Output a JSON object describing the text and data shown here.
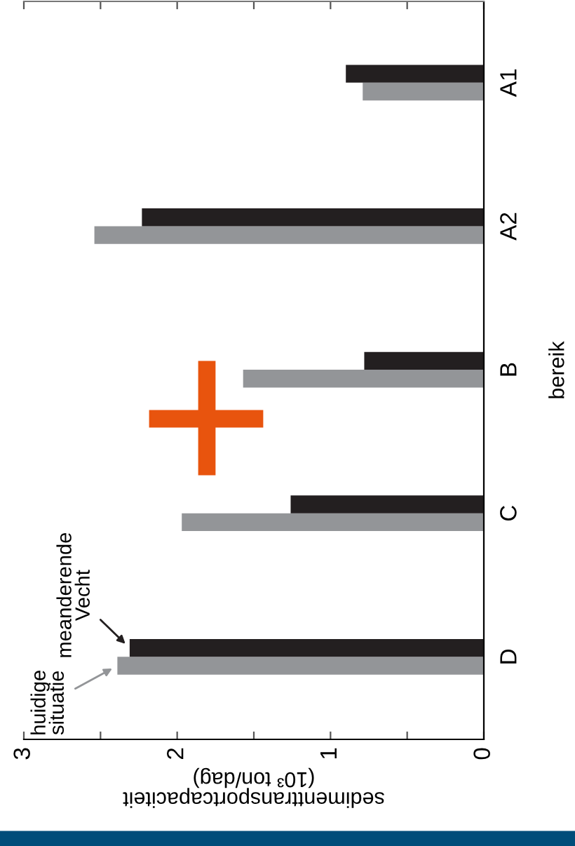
{
  "chart_data": {
    "type": "bar",
    "orientation": "horizontal",
    "categories": [
      "A1",
      "A2",
      "B",
      "C",
      "D"
    ],
    "series": [
      {
        "name": "huidige\nsituatie",
        "color": "#939598",
        "values": [
          0.79,
          2.54,
          1.57,
          1.97,
          2.39
        ]
      },
      {
        "name": "meanderende\nVecht",
        "color": "#231f20",
        "values": [
          0.9,
          2.23,
          0.78,
          1.26,
          2.31
        ]
      }
    ],
    "xlim": [
      3,
      0
    ],
    "xticks": [
      0,
      {
        "value": 0.5,
        "label": null
      },
      1,
      {
        "value": 1.5,
        "label": null
      },
      2,
      {
        "value": 2.5,
        "label": null
      },
      3
    ],
    "xlabel": "sedimenttransportcapaciteit\n(10³ ton/dag)",
    "ylabel": "bereik"
  }
}
